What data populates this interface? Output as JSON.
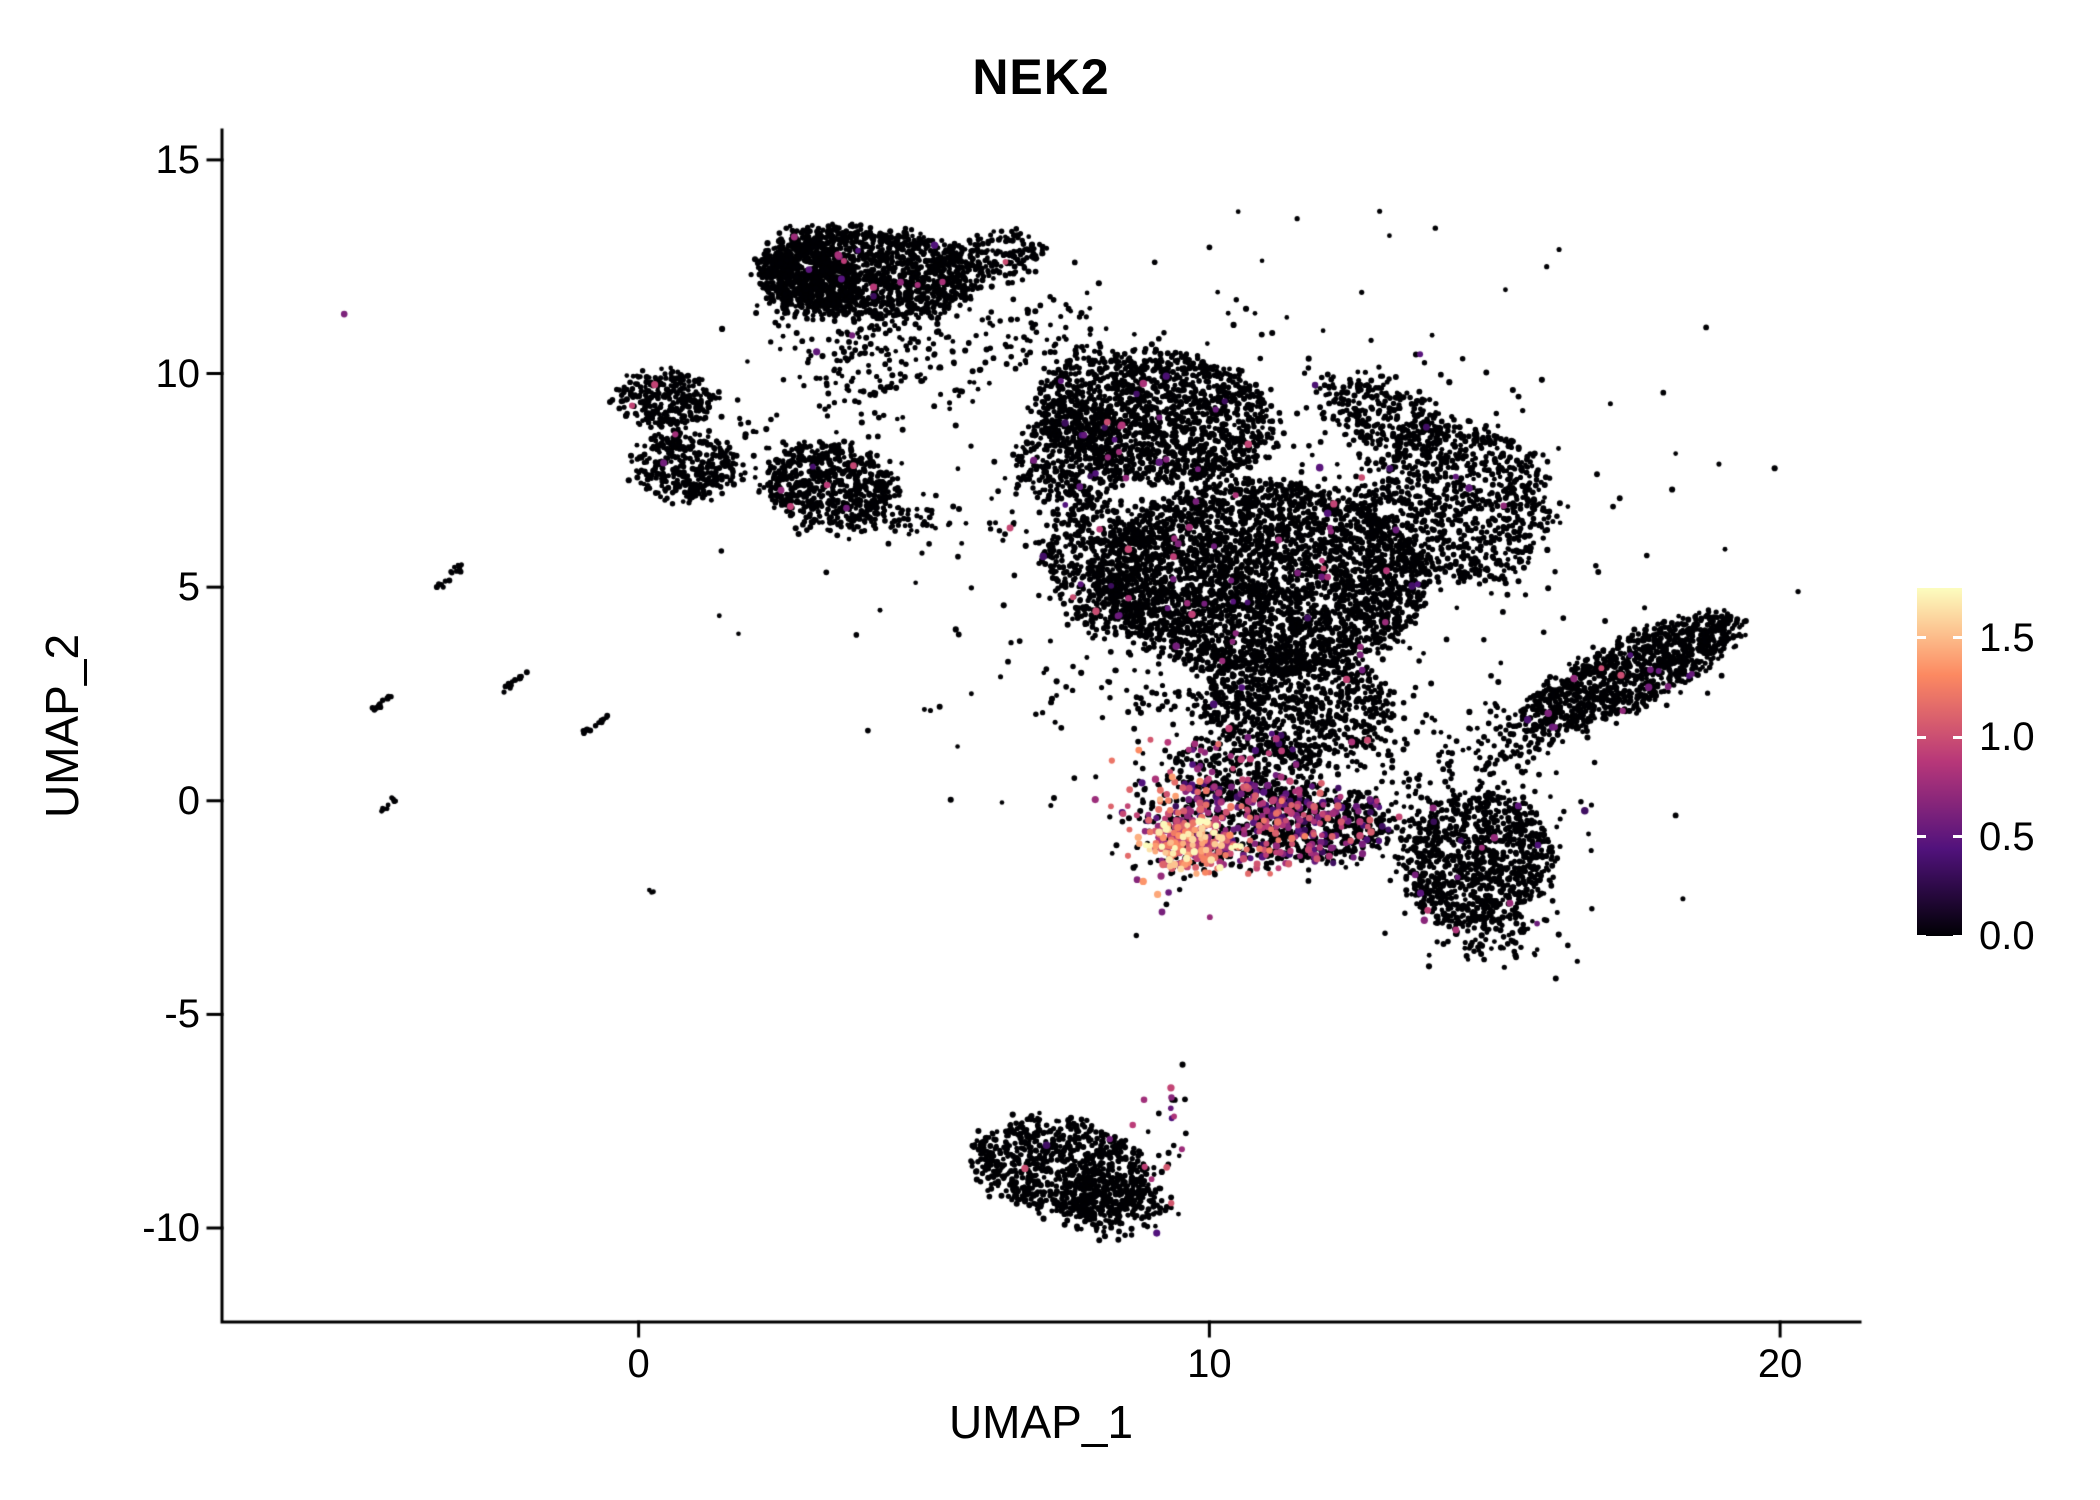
{
  "chart_data": {
    "type": "scatter",
    "title": "NEK2",
    "xlabel": "UMAP_1",
    "ylabel": "UMAP_2",
    "xlim": [
      -7.3,
      21.4
    ],
    "ylim": [
      -12.2,
      15.7
    ],
    "grid": false,
    "legend_position": "right",
    "x_ticks": [
      {
        "value": 0,
        "label": "0"
      },
      {
        "value": 10,
        "label": "10"
      },
      {
        "value": 20,
        "label": "20"
      }
    ],
    "y_ticks": [
      {
        "value": 15,
        "label": "15"
      },
      {
        "value": 10,
        "label": "10"
      },
      {
        "value": 5,
        "label": "5"
      },
      {
        "value": 0,
        "label": "0"
      },
      {
        "value": -5,
        "label": "-5"
      },
      {
        "value": -10,
        "label": "-10"
      }
    ],
    "colorbar": {
      "min": 0,
      "max": 1.75,
      "colormap": "magma",
      "stops": [
        "#000004",
        "#51127c",
        "#b73779",
        "#fc8961",
        "#fcfdbf"
      ],
      "ticks": [
        {
          "value": 0.0,
          "label": "0.0"
        },
        {
          "value": 0.5,
          "label": "0.5"
        },
        {
          "value": 1.0,
          "label": "1.0"
        },
        {
          "value": 1.5,
          "label": "1.5"
        }
      ]
    },
    "point_color_zero": "#000004",
    "clusters": [
      {
        "name": "top-cluster-main",
        "type": "blob",
        "cx": 4.0,
        "cy": 12.4,
        "rx": 1.9,
        "ry": 1.05,
        "rot": -8,
        "n": 1300,
        "expr_frac": 0.008
      },
      {
        "name": "top-cluster-left-lobe",
        "type": "blob",
        "cx": 2.95,
        "cy": 12.2,
        "rx": 0.8,
        "ry": 0.85,
        "rot": 0,
        "n": 450,
        "expr_frac": 0.006
      },
      {
        "name": "top-cluster-right-tail",
        "type": "blob",
        "cx": 6.2,
        "cy": 12.75,
        "rx": 0.9,
        "ry": 0.5,
        "rot": 15,
        "n": 180,
        "expr_frac": 0.01
      },
      {
        "name": "top-cluster-lower-fringe",
        "type": "gauss",
        "cx": 4.2,
        "cy": 11.0,
        "rx": 1.1,
        "ry": 0.7,
        "rot": 0,
        "n": 200,
        "expr_frac": 0.01
      },
      {
        "name": "top-cluster-drip",
        "type": "gauss",
        "cx": 3.9,
        "cy": 9.9,
        "rx": 0.45,
        "ry": 0.7,
        "rot": 0,
        "n": 60,
        "expr_frac": 0.02
      },
      {
        "name": "bridge-top-to-main",
        "type": "gauss",
        "cx": 7.1,
        "cy": 10.9,
        "rx": 0.6,
        "ry": 0.75,
        "rot": 0,
        "n": 70,
        "expr_frac": 0.015
      },
      {
        "name": "left-small-upper",
        "type": "blob",
        "cx": 0.5,
        "cy": 9.4,
        "rx": 0.85,
        "ry": 0.62,
        "rot": -10,
        "n": 260,
        "expr_frac": 0.008
      },
      {
        "name": "left-small-lower",
        "type": "blob",
        "cx": 0.85,
        "cy": 7.8,
        "rx": 0.95,
        "ry": 0.75,
        "rot": 0,
        "n": 320,
        "expr_frac": 0.012
      },
      {
        "name": "left-small-bridge",
        "type": "gauss",
        "cx": 0.6,
        "cy": 8.6,
        "rx": 0.3,
        "ry": 0.45,
        "rot": 0,
        "n": 50,
        "expr_frac": 0
      },
      {
        "name": "mid-left-cluster",
        "type": "blob",
        "cx": 3.3,
        "cy": 7.4,
        "rx": 1.15,
        "ry": 0.95,
        "rot": -20,
        "n": 620,
        "expr_frac": 0.012
      },
      {
        "name": "mid-left-tail",
        "type": "gauss",
        "cx": 4.5,
        "cy": 6.7,
        "rx": 0.5,
        "ry": 0.35,
        "rot": 0,
        "n": 70,
        "expr_frac": 0
      },
      {
        "name": "main-upper-lobe",
        "type": "blob",
        "cx": 9.1,
        "cy": 9.0,
        "rx": 2.1,
        "ry": 1.5,
        "rot": -12,
        "n": 1500,
        "expr_frac": 0.01
      },
      {
        "name": "main-upper-left",
        "type": "blob",
        "cx": 7.6,
        "cy": 8.1,
        "rx": 0.95,
        "ry": 1.2,
        "rot": 0,
        "n": 380,
        "expr_frac": 0.01
      },
      {
        "name": "main-center",
        "type": "blob",
        "cx": 10.9,
        "cy": 5.2,
        "rx": 2.9,
        "ry": 2.25,
        "rot": -5,
        "n": 3400,
        "expr_frac": 0.012
      },
      {
        "name": "main-left-edge",
        "type": "blob",
        "cx": 8.1,
        "cy": 5.5,
        "rx": 0.95,
        "ry": 1.6,
        "rot": 10,
        "n": 450,
        "expr_frac": 0.012
      },
      {
        "name": "main-right-lobe",
        "type": "blob",
        "cx": 14.3,
        "cy": 7.0,
        "rx": 1.7,
        "ry": 1.95,
        "rot": 20,
        "n": 950,
        "expr_frac": 0.012
      },
      {
        "name": "main-right-top-arm",
        "type": "blob",
        "cx": 13.0,
        "cy": 9.1,
        "rx": 1.25,
        "ry": 0.75,
        "rot": -30,
        "n": 280,
        "expr_frac": 0.01
      },
      {
        "name": "main-lower-extension",
        "type": "blob",
        "cx": 11.5,
        "cy": 2.3,
        "rx": 1.7,
        "ry": 1.25,
        "rot": 0,
        "n": 750,
        "expr_frac": 0.015
      },
      {
        "name": "main-halo",
        "type": "gauss",
        "cx": 10.6,
        "cy": 6.0,
        "rx": 3.4,
        "ry": 3.0,
        "rot": 0,
        "n": 450,
        "expr_frac": 0.012
      },
      {
        "name": "right-arm",
        "type": "blob",
        "cx": 17.4,
        "cy": 3.0,
        "rx": 2.25,
        "ry": 0.72,
        "rot": 33,
        "n": 1050,
        "expr_frac": 0.012
      },
      {
        "name": "right-arm-base",
        "type": "gauss",
        "cx": 15.3,
        "cy": 1.5,
        "rx": 0.8,
        "ry": 0.5,
        "rot": 30,
        "n": 130,
        "expr_frac": 0.01
      },
      {
        "name": "lower-right-blob",
        "type": "blob",
        "cx": 14.7,
        "cy": -1.4,
        "rx": 1.3,
        "ry": 1.55,
        "rot": -15,
        "n": 900,
        "expr_frac": 0.015
      },
      {
        "name": "lower-right-tail",
        "type": "gauss",
        "cx": 14.9,
        "cy": -3.0,
        "rx": 0.6,
        "ry": 0.45,
        "rot": 0,
        "n": 120,
        "expr_frac": 0.01
      },
      {
        "name": "expr-hotspot-core",
        "type": "blob",
        "cx": 9.7,
        "cy": -1.05,
        "rx": 0.75,
        "ry": 0.6,
        "rot": 0,
        "n": 230,
        "expr_frac": 0.85,
        "expr_min": 0.6,
        "expr_max": 1.8
      },
      {
        "name": "expr-hotspot-left",
        "type": "gauss",
        "cx": 9.15,
        "cy": -0.2,
        "rx": 0.45,
        "ry": 0.85,
        "rot": 0,
        "n": 150,
        "expr_frac": 0.5,
        "expr_min": 0.4,
        "expr_max": 1.5
      },
      {
        "name": "expr-mid",
        "type": "blob",
        "cx": 10.7,
        "cy": -0.6,
        "rx": 1.5,
        "ry": 1.0,
        "rot": 0,
        "n": 520,
        "expr_frac": 0.4,
        "expr_min": 0.3,
        "expr_max": 1.3
      },
      {
        "name": "expr-right",
        "type": "blob",
        "cx": 12.0,
        "cy": -0.55,
        "rx": 1.15,
        "ry": 0.9,
        "rot": 0,
        "n": 430,
        "expr_frac": 0.18,
        "expr_min": 0.3,
        "expr_max": 1.1
      },
      {
        "name": "expr-top-band",
        "type": "blob",
        "cx": 10.6,
        "cy": 0.8,
        "rx": 1.3,
        "ry": 0.85,
        "rot": 0,
        "n": 330,
        "expr_frac": 0.12,
        "expr_min": 0.3,
        "expr_max": 1.0
      },
      {
        "name": "bridge-expr-to-lowerright",
        "type": "gauss",
        "cx": 13.3,
        "cy": -0.6,
        "rx": 0.65,
        "ry": 0.5,
        "rot": 0,
        "n": 80,
        "expr_frac": 0.06
      },
      {
        "name": "bottom-cluster",
        "type": "blob",
        "cx": 7.4,
        "cy": -8.6,
        "rx": 1.6,
        "ry": 1.05,
        "rot": -18,
        "n": 820,
        "expr_frac": 0.006
      },
      {
        "name": "bottom-cluster-lower",
        "type": "blob",
        "cx": 8.3,
        "cy": -9.4,
        "rx": 0.9,
        "ry": 0.75,
        "rot": -10,
        "n": 240,
        "expr_frac": 0.006
      },
      {
        "name": "bottom-cluster-right-edge",
        "type": "gauss",
        "cx": 9.2,
        "cy": -8.4,
        "rx": 0.3,
        "ry": 0.9,
        "rot": 0,
        "n": 30,
        "expr_frac": 0.4,
        "expr_min": 0.4,
        "expr_max": 1.1
      },
      {
        "name": "sprinkle-between-top-and-main",
        "type": "gauss",
        "cx": 5.6,
        "cy": 9.7,
        "rx": 0.9,
        "ry": 0.7,
        "rot": 0,
        "n": 40,
        "expr_frac": 0
      },
      {
        "name": "sprinkle-between-left-clusters",
        "type": "gauss",
        "cx": 2.0,
        "cy": 8.6,
        "rx": 0.5,
        "ry": 0.4,
        "rot": 0,
        "n": 20,
        "expr_frac": 0
      },
      {
        "name": "sprinkle-below-main",
        "type": "gauss",
        "cx": 9.0,
        "cy": 2.7,
        "rx": 1.0,
        "ry": 0.8,
        "rot": 0,
        "n": 60,
        "expr_frac": 0.03
      },
      {
        "name": "sprinkle-main-to-expr",
        "type": "gauss",
        "cx": 12.7,
        "cy": 1.4,
        "rx": 0.9,
        "ry": 0.7,
        "rot": 0,
        "n": 60,
        "expr_frac": 0.02
      },
      {
        "name": "sprinkle-right-gap",
        "type": "gauss",
        "cx": 14.0,
        "cy": 0.2,
        "rx": 0.8,
        "ry": 0.6,
        "rot": 0,
        "n": 40,
        "expr_frac": 0.02
      },
      {
        "name": "sprinkle-below-midleft",
        "type": "gauss",
        "cx": 6.6,
        "cy": 7.0,
        "rx": 0.6,
        "ry": 0.6,
        "rot": 0,
        "n": 15,
        "expr_frac": 0
      },
      {
        "name": "sprinkle-arm-gap",
        "type": "gauss",
        "cx": 15.8,
        "cy": -0.3,
        "rx": 0.6,
        "ry": 0.5,
        "rot": 0,
        "n": 25,
        "expr_frac": 0.02
      },
      {
        "name": "streak-1",
        "type": "streak",
        "x1": -3.5,
        "y1": 5.0,
        "x2": -3.1,
        "y2": 5.5,
        "n": 16
      },
      {
        "name": "streak-2",
        "type": "streak",
        "x1": -2.4,
        "y1": 2.5,
        "x2": -2.0,
        "y2": 3.0,
        "n": 13
      },
      {
        "name": "streak-3",
        "type": "streak",
        "x1": -4.7,
        "y1": 2.1,
        "x2": -4.3,
        "y2": 2.5,
        "n": 12
      },
      {
        "name": "streak-4",
        "type": "streak",
        "x1": -1.0,
        "y1": 1.55,
        "x2": -0.55,
        "y2": 1.95,
        "n": 12
      },
      {
        "name": "streak-5",
        "type": "streak",
        "x1": -4.5,
        "y1": -0.25,
        "x2": -4.2,
        "y2": 0.1,
        "n": 9
      },
      {
        "name": "streak-6",
        "type": "streak",
        "x1": 0.15,
        "y1": -2.15,
        "x2": 0.3,
        "y2": -2.05,
        "n": 3
      },
      {
        "name": "outlier-purple-left",
        "type": "gauss",
        "cx": -5.1,
        "cy": 11.4,
        "rx": 0.05,
        "ry": 0.05,
        "rot": 0,
        "n": 1,
        "expr_frac": 1,
        "expr_min": 0.6,
        "expr_max": 0.9
      }
    ]
  }
}
